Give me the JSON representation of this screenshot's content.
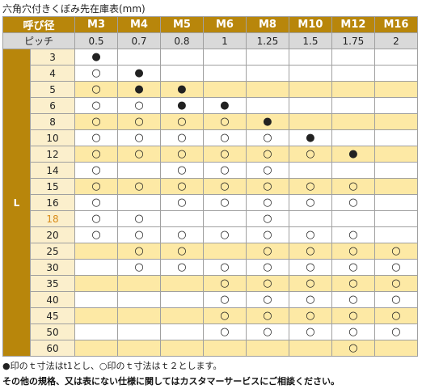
{
  "title": "六角穴付きくぼみ先在庫表(mm)",
  "table": {
    "header": {
      "label": "呼び径",
      "columns": [
        "M3",
        "M4",
        "M5",
        "M6",
        "M8",
        "M10",
        "M12",
        "M16"
      ]
    },
    "pitch": {
      "label": "ピッチ",
      "values": [
        "0.5",
        "0.7",
        "0.8",
        "1",
        "1.25",
        "1.5",
        "1.75",
        "2"
      ]
    },
    "length_label": "L",
    "rows": [
      {
        "length": "3",
        "cells": [
          "●",
          null,
          null,
          null,
          null,
          null,
          null,
          null
        ]
      },
      {
        "length": "4",
        "cells": [
          "○",
          "●",
          null,
          null,
          null,
          null,
          null,
          null
        ]
      },
      {
        "length": "5",
        "cells": [
          "○",
          "●",
          "●",
          null,
          null,
          null,
          null,
          null
        ]
      },
      {
        "length": "6",
        "cells": [
          "○",
          "○",
          "●",
          "●",
          null,
          null,
          null,
          null
        ]
      },
      {
        "length": "8",
        "cells": [
          "○",
          "○",
          "○",
          "○",
          "●",
          null,
          null,
          null
        ]
      },
      {
        "length": "10",
        "cells": [
          "○",
          "○",
          "○",
          "○",
          "○",
          "●",
          null,
          null
        ]
      },
      {
        "length": "12",
        "cells": [
          "○",
          "○",
          "○",
          "○",
          "○",
          "○",
          "●",
          null
        ]
      },
      {
        "length": "14",
        "cells": [
          "○",
          null,
          "○",
          "○",
          "○",
          null,
          null,
          null
        ]
      },
      {
        "length": "15",
        "cells": [
          "○",
          "○",
          "○",
          "○",
          "○",
          "○",
          "○",
          null
        ]
      },
      {
        "length": "16",
        "cells": [
          "○",
          null,
          "○",
          "○",
          "○",
          "○",
          "○",
          null
        ]
      },
      {
        "length": "18",
        "cells": [
          "○",
          "○",
          null,
          null,
          "○",
          null,
          null,
          null
        ]
      },
      {
        "length": "20",
        "cells": [
          "○",
          "○",
          "○",
          "○",
          "○",
          "○",
          "○",
          null
        ]
      },
      {
        "length": "25",
        "cells": [
          null,
          "○",
          "○",
          null,
          "○",
          "○",
          "○",
          "○"
        ]
      },
      {
        "length": "30",
        "cells": [
          null,
          "○",
          "○",
          "○",
          "○",
          "○",
          "○",
          "○"
        ]
      },
      {
        "length": "35",
        "cells": [
          null,
          null,
          null,
          "○",
          "○",
          "○",
          "○",
          "○"
        ]
      },
      {
        "length": "40",
        "cells": [
          null,
          null,
          null,
          "○",
          "○",
          "○",
          "○",
          "○"
        ]
      },
      {
        "length": "45",
        "cells": [
          null,
          null,
          null,
          "○",
          "○",
          "○",
          "○",
          "○"
        ]
      },
      {
        "length": "50",
        "cells": [
          null,
          null,
          null,
          "○",
          "○",
          "○",
          "○",
          "○"
        ]
      },
      {
        "length": "60",
        "cells": [
          null,
          null,
          null,
          null,
          null,
          null,
          "○",
          null
        ]
      }
    ]
  },
  "notes": [
    "●印のｔ寸法はt1とし、○印のｔ寸法はｔ２とします。",
    "その他の規格、又は表にない仕様に関してはカスタマーサービスにご相談ください。"
  ]
}
